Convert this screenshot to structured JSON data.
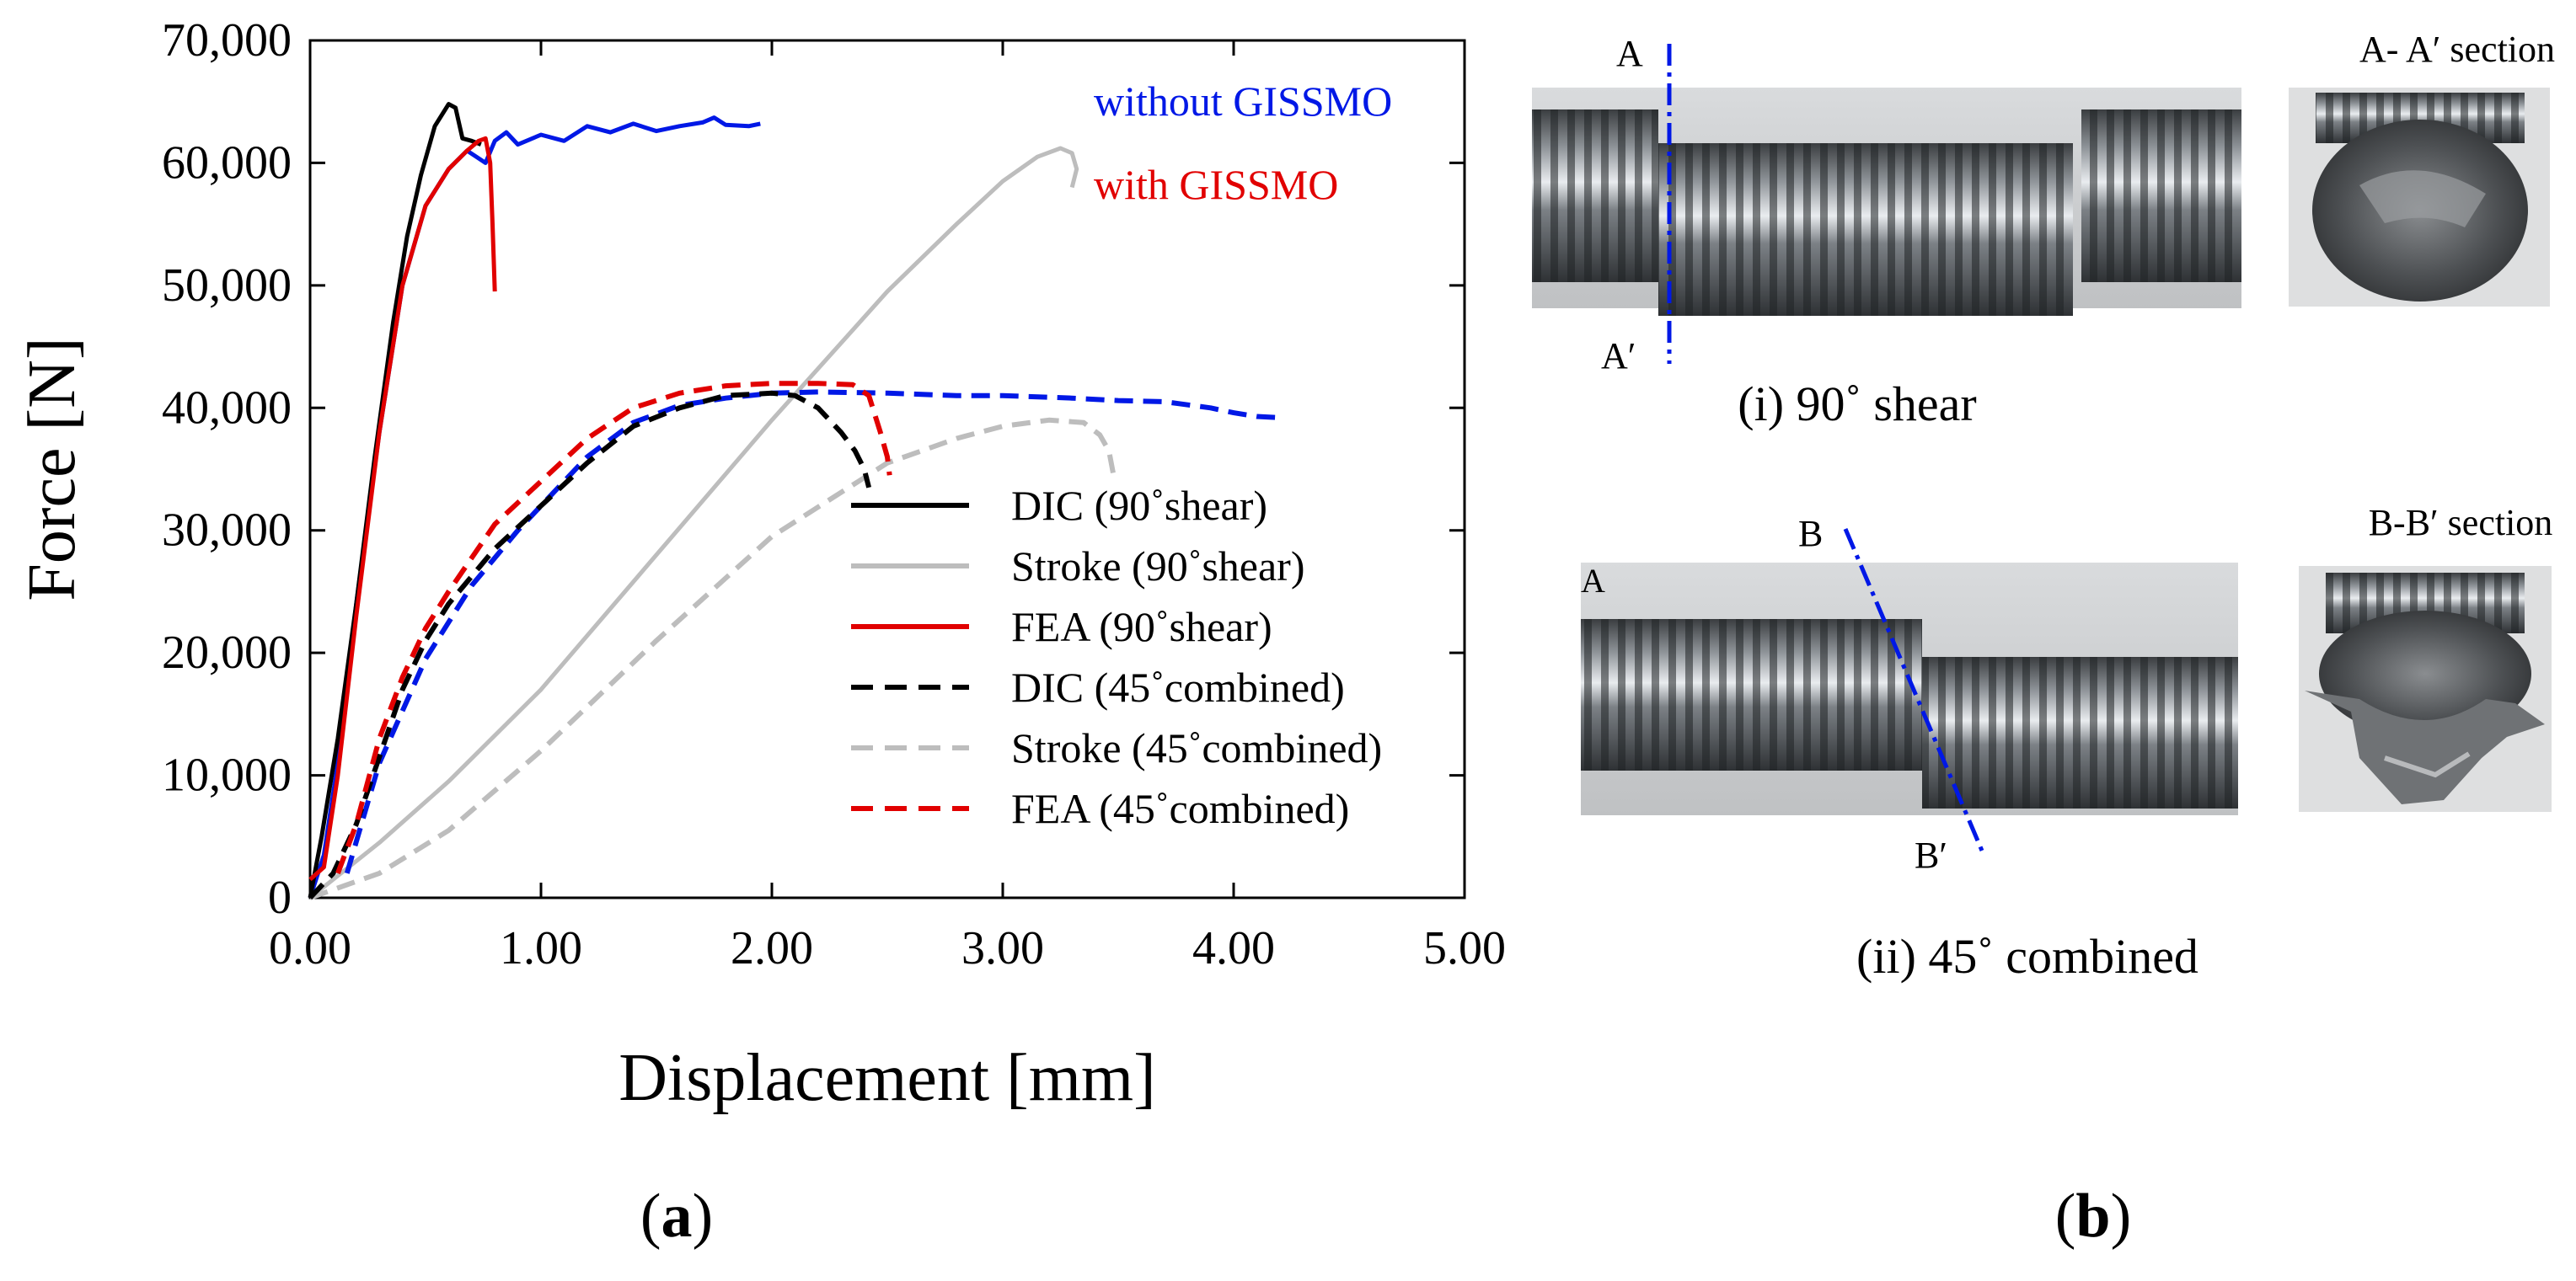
{
  "chart_data": {
    "type": "line",
    "xlabel": "Displacement [mm]",
    "ylabel": "Force [N]",
    "xlim": [
      0,
      5
    ],
    "ylim": [
      0,
      70000
    ],
    "xticks": [
      0,
      1,
      2,
      3,
      4,
      5
    ],
    "xtick_labels": [
      "0.00",
      "1.00",
      "2.00",
      "3.00",
      "4.00",
      "5.00"
    ],
    "yticks": [
      0,
      10000,
      20000,
      30000,
      40000,
      50000,
      60000,
      70000
    ],
    "ytick_labels": [
      "0",
      "10,000",
      "20,000",
      "30,000",
      "40,000",
      "50,000",
      "60,000",
      "70,000"
    ],
    "grid": false,
    "legend_position": "lower-right",
    "series": [
      {
        "name": "DIC (90˚shear)",
        "color": "#000000",
        "dash": false,
        "in_legend": true,
        "x": [
          0,
          0.05,
          0.12,
          0.2,
          0.28,
          0.36,
          0.42,
          0.48,
          0.54,
          0.6,
          0.63,
          0.66,
          0.7,
          0.74
        ],
        "y": [
          0,
          5000,
          13000,
          24000,
          36000,
          47000,
          54000,
          59000,
          63000,
          64800,
          64500,
          62000,
          61800,
          61500
        ]
      },
      {
        "name": "Stroke (90˚shear)",
        "color": "#bdbdbd",
        "dash": false,
        "in_legend": true,
        "x": [
          0,
          0.3,
          0.6,
          1.0,
          1.5,
          2.0,
          2.5,
          2.8,
          3.0,
          3.15,
          3.25,
          3.3,
          3.32,
          3.3
        ],
        "y": [
          0,
          4500,
          9500,
          17000,
          28000,
          39000,
          49500,
          55000,
          58500,
          60500,
          61200,
          60800,
          59500,
          58000
        ]
      },
      {
        "name": "FEA (90˚shear)",
        "color": "#e10000",
        "dash": false,
        "in_legend": true,
        "x": [
          0,
          0.06,
          0.12,
          0.2,
          0.3,
          0.4,
          0.5,
          0.6,
          0.68,
          0.73,
          0.76,
          0.78,
          0.79,
          0.8
        ],
        "y": [
          1500,
          2500,
          10000,
          23000,
          38000,
          50000,
          56500,
          59500,
          61000,
          61800,
          62000,
          60000,
          55000,
          49500
        ]
      },
      {
        "name": "DIC (45˚combined)",
        "color": "#000000",
        "dash": true,
        "in_legend": true,
        "x": [
          0,
          0.1,
          0.2,
          0.3,
          0.4,
          0.5,
          0.6,
          0.8,
          1.0,
          1.2,
          1.4,
          1.6,
          1.8,
          2.0,
          2.1,
          2.2,
          2.3,
          2.36,
          2.4,
          2.42
        ],
        "y": [
          0,
          2000,
          6000,
          11500,
          17000,
          21000,
          24000,
          28500,
          32000,
          35500,
          38500,
          40000,
          41000,
          41200,
          41000,
          40000,
          38000,
          36500,
          35000,
          33500
        ]
      },
      {
        "name": "Stroke (45˚combined)",
        "color": "#bdbdbd",
        "dash": true,
        "in_legend": true,
        "x": [
          0,
          0.3,
          0.6,
          1.0,
          1.5,
          2.0,
          2.5,
          2.8,
          3.0,
          3.2,
          3.35,
          3.42,
          3.46,
          3.48
        ],
        "y": [
          0,
          2000,
          5500,
          12000,
          21000,
          29500,
          35500,
          37500,
          38500,
          39000,
          38800,
          37800,
          36500,
          34500
        ]
      },
      {
        "name": "FEA (45˚combined)",
        "color": "#e10000",
        "dash": true,
        "in_legend": true,
        "x": [
          0.12,
          0.2,
          0.3,
          0.4,
          0.5,
          0.6,
          0.8,
          1.0,
          1.2,
          1.4,
          1.6,
          1.8,
          2.0,
          2.2,
          2.35,
          2.42,
          2.47,
          2.5,
          2.51
        ],
        "y": [
          2000,
          6000,
          13000,
          18000,
          22000,
          25000,
          30500,
          34000,
          37500,
          40000,
          41200,
          41800,
          42000,
          42000,
          41900,
          41000,
          38000,
          36000,
          34500
        ]
      },
      {
        "name": "without GISSMO solid",
        "color": "#0018e6",
        "dash": false,
        "in_legend": false,
        "x": [
          0,
          0.06,
          0.12,
          0.2,
          0.3,
          0.4,
          0.5,
          0.6,
          0.68,
          0.72,
          0.76,
          0.8,
          0.85,
          0.9,
          1.0,
          1.1,
          1.2,
          1.3,
          1.4,
          1.5,
          1.6,
          1.7,
          1.75,
          1.8,
          1.9,
          1.95
        ],
        "y": [
          0,
          3500,
          11000,
          24000,
          38000,
          50000,
          56500,
          59500,
          61000,
          60500,
          60000,
          61800,
          62500,
          61500,
          62300,
          61800,
          63000,
          62500,
          63200,
          62600,
          63000,
          63300,
          63700,
          63100,
          63000,
          63200
        ]
      },
      {
        "name": "without GISSMO dashed",
        "color": "#0018e6",
        "dash": true,
        "in_legend": false,
        "x": [
          0.16,
          0.3,
          0.5,
          0.7,
          0.9,
          1.0,
          1.2,
          1.4,
          1.6,
          1.8,
          2.0,
          2.2,
          2.5,
          2.8,
          3.0,
          3.3,
          3.5,
          3.7,
          3.9,
          4.0,
          4.1,
          4.2
        ],
        "y": [
          2000,
          11000,
          19500,
          25500,
          30000,
          32000,
          36000,
          38800,
          40200,
          40800,
          41200,
          41300,
          41200,
          41000,
          41000,
          40800,
          40600,
          40500,
          40000,
          39600,
          39300,
          39200
        ]
      }
    ],
    "annotations": [
      {
        "text": "without GISSMO",
        "color": "#0018e6"
      },
      {
        "text": "with GISSMO",
        "color": "#e10000"
      }
    ]
  },
  "panel_a_label": {
    "open": "(",
    "letter": "a",
    "close": ")"
  },
  "panel_b_label": {
    "open": "(",
    "letter": "b",
    "close": ")"
  },
  "panel_b": {
    "photo_i_caption": "(i) 90˚ shear",
    "photo_ii_caption": "(ii) 45˚ combined",
    "section_a_label": "A- A′ section",
    "section_b_label": "B-B′ section",
    "marker_A": "A",
    "marker_A_prime": "A′",
    "marker_A_left": "A",
    "marker_B": "B",
    "marker_B_prime": "B′",
    "line_color": "#0018e6"
  }
}
